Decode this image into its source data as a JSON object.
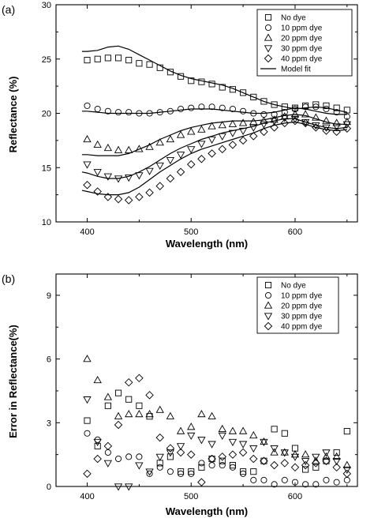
{
  "panels": [
    {
      "label": "(a)"
    },
    {
      "label": "(b)"
    }
  ],
  "chart_data": [
    {
      "type": "scatter",
      "xlabel": "Wavelength (nm)",
      "ylabel": "Reflectance (%)",
      "xlim": [
        370,
        660
      ],
      "ylim": [
        10,
        30
      ],
      "xticks": [
        400,
        500,
        600
      ],
      "yticks": [
        10,
        15,
        20,
        25,
        30
      ],
      "legend_position": "top-right",
      "series": [
        {
          "name": "No dye",
          "marker": "square",
          "x": [
            400,
            410,
            420,
            430,
            440,
            450,
            460,
            470,
            480,
            490,
            500,
            510,
            520,
            530,
            540,
            550,
            560,
            570,
            580,
            590,
            600,
            610,
            620,
            630,
            640,
            650
          ],
          "y": [
            24.9,
            25.0,
            25.1,
            25.1,
            24.9,
            24.6,
            24.5,
            24.2,
            23.8,
            23.4,
            23.0,
            22.9,
            22.7,
            22.4,
            22.2,
            21.9,
            21.5,
            21.1,
            20.8,
            20.6,
            20.5,
            20.7,
            20.8,
            20.7,
            20.5,
            20.3
          ]
        },
        {
          "name": "10 ppm dye",
          "marker": "circle",
          "x": [
            400,
            410,
            420,
            430,
            440,
            450,
            460,
            470,
            480,
            490,
            500,
            510,
            520,
            530,
            540,
            550,
            560,
            570,
            580,
            590,
            600,
            610,
            620,
            630,
            640,
            650
          ],
          "y": [
            20.7,
            20.4,
            20.2,
            20.1,
            20.1,
            20.0,
            20.0,
            20.1,
            20.2,
            20.4,
            20.5,
            20.6,
            20.6,
            20.5,
            20.4,
            20.2,
            20.0,
            19.9,
            19.9,
            20.1,
            20.4,
            20.6,
            20.6,
            20.4,
            20.1,
            19.7
          ]
        },
        {
          "name": "20 ppm dye",
          "marker": "triangle-up",
          "x": [
            400,
            410,
            420,
            430,
            440,
            450,
            460,
            470,
            480,
            490,
            500,
            510,
            520,
            530,
            540,
            550,
            560,
            570,
            580,
            590,
            600,
            610,
            620,
            630,
            640,
            650
          ],
          "y": [
            17.6,
            17.1,
            16.8,
            16.6,
            16.6,
            16.7,
            16.9,
            17.3,
            17.6,
            18.0,
            18.3,
            18.5,
            18.8,
            18.9,
            19.0,
            19.1,
            19.2,
            19.3,
            19.4,
            19.7,
            19.9,
            19.9,
            19.6,
            19.3,
            19.1,
            19.2
          ]
        },
        {
          "name": "30 ppm dye",
          "marker": "triangle-down",
          "x": [
            400,
            410,
            420,
            430,
            440,
            450,
            460,
            470,
            480,
            490,
            500,
            510,
            520,
            530,
            540,
            550,
            560,
            570,
            580,
            590,
            600,
            610,
            620,
            630,
            640,
            650
          ],
          "y": [
            15.3,
            14.6,
            14.2,
            14.0,
            14.1,
            14.3,
            14.7,
            15.2,
            15.7,
            16.2,
            16.7,
            17.2,
            17.6,
            17.9,
            18.2,
            18.4,
            18.7,
            19.0,
            19.3,
            19.6,
            19.5,
            19.2,
            18.9,
            18.7,
            18.8,
            19.0
          ]
        },
        {
          "name": "40 ppm dye",
          "marker": "diamond",
          "x": [
            400,
            410,
            420,
            430,
            440,
            450,
            460,
            470,
            480,
            490,
            500,
            510,
            520,
            530,
            540,
            550,
            560,
            570,
            580,
            590,
            600,
            610,
            620,
            630,
            640,
            650
          ],
          "y": [
            13.4,
            12.8,
            12.3,
            12.1,
            12.0,
            12.3,
            12.7,
            13.3,
            14.0,
            14.6,
            15.3,
            15.8,
            16.3,
            16.7,
            17.1,
            17.5,
            17.9,
            18.3,
            18.7,
            19.1,
            19.3,
            19.1,
            18.7,
            18.4,
            18.3,
            18.6
          ]
        }
      ],
      "model_fit": [
        {
          "name": "Model fit",
          "for": "No dye",
          "x": [
            395,
            400,
            410,
            420,
            430,
            440,
            450,
            460,
            470,
            480,
            490,
            500,
            510,
            520,
            530,
            540,
            550,
            560,
            570,
            580,
            590,
            600,
            610,
            620,
            630,
            640,
            650
          ],
          "y": [
            25.7,
            25.7,
            25.8,
            26.1,
            26.2,
            25.9,
            25.4,
            24.9,
            24.4,
            23.9,
            23.5,
            23.2,
            23.0,
            22.8,
            22.6,
            22.3,
            21.9,
            21.5,
            21.1,
            20.8,
            20.6,
            20.4,
            20.5,
            20.6,
            20.5,
            20.3,
            20.1
          ]
        },
        {
          "for": "10 ppm dye",
          "x": [
            395,
            400,
            410,
            420,
            430,
            440,
            450,
            460,
            470,
            480,
            490,
            500,
            510,
            520,
            530,
            540,
            550,
            560,
            570,
            580,
            590,
            600,
            610,
            620,
            630,
            640,
            650
          ],
          "y": [
            20.2,
            20.2,
            20.1,
            20.0,
            20.0,
            20.0,
            20.0,
            20.0,
            20.1,
            20.2,
            20.3,
            20.4,
            20.4,
            20.4,
            20.3,
            20.2,
            20.1,
            20.0,
            20.0,
            20.1,
            20.3,
            20.5,
            20.4,
            20.2,
            20.0,
            19.9,
            19.9
          ]
        },
        {
          "for": "20 ppm dye",
          "x": [
            395,
            400,
            410,
            420,
            430,
            440,
            450,
            460,
            470,
            480,
            490,
            500,
            510,
            520,
            530,
            540,
            550,
            560,
            570,
            580,
            590,
            600,
            610,
            620,
            630,
            640,
            650
          ],
          "y": [
            16.2,
            16.2,
            16.1,
            16.1,
            16.1,
            16.3,
            16.7,
            17.1,
            17.6,
            18.0,
            18.4,
            18.7,
            18.9,
            19.1,
            19.2,
            19.3,
            19.3,
            19.3,
            19.4,
            19.6,
            19.8,
            19.9,
            19.8,
            19.5,
            19.2,
            19.0,
            19.0
          ]
        },
        {
          "for": "30 ppm dye",
          "x": [
            395,
            400,
            410,
            420,
            430,
            440,
            450,
            460,
            470,
            480,
            490,
            500,
            510,
            520,
            530,
            540,
            550,
            560,
            570,
            580,
            590,
            600,
            610,
            620,
            630,
            640,
            650
          ],
          "y": [
            14.6,
            14.5,
            14.2,
            14.0,
            14.0,
            14.2,
            14.6,
            15.1,
            15.7,
            16.3,
            16.8,
            17.2,
            17.6,
            17.9,
            18.2,
            18.4,
            18.6,
            18.8,
            19.1,
            19.3,
            19.5,
            19.5,
            19.2,
            18.9,
            18.7,
            18.6,
            18.7
          ]
        },
        {
          "for": "40 ppm dye",
          "x": [
            395,
            400,
            410,
            420,
            430,
            440,
            450,
            460,
            470,
            480,
            490,
            500,
            510,
            520,
            530,
            540,
            550,
            560,
            570,
            580,
            590,
            600,
            610,
            620,
            630,
            640,
            650
          ],
          "y": [
            12.9,
            12.8,
            12.6,
            12.5,
            12.5,
            12.7,
            13.2,
            13.9,
            14.6,
            15.2,
            15.8,
            16.3,
            16.7,
            17.0,
            17.3,
            17.6,
            17.9,
            18.2,
            18.6,
            18.9,
            19.1,
            19.2,
            19.0,
            18.7,
            18.5,
            18.4,
            18.5
          ]
        }
      ]
    },
    {
      "type": "scatter",
      "xlabel": "Wavelength (nm)",
      "ylabel": "Error in Reflectance(%)",
      "xlim": [
        370,
        660
      ],
      "ylim": [
        0,
        10
      ],
      "xticks": [
        400,
        500,
        600
      ],
      "yticks": [
        0,
        3,
        6,
        9
      ],
      "legend_position": "top-right",
      "series": [
        {
          "name": "No dye",
          "marker": "square",
          "x": [
            400,
            410,
            420,
            430,
            440,
            450,
            460,
            470,
            480,
            490,
            500,
            510,
            520,
            530,
            540,
            550,
            560,
            570,
            580,
            590,
            600,
            610,
            620,
            630,
            640,
            650
          ],
          "y": [
            3.1,
            1.9,
            3.8,
            4.4,
            4.1,
            3.8,
            3.3,
            1.1,
            1.4,
            0.7,
            0.7,
            0.9,
            1.3,
            1.2,
            1.0,
            0.7,
            0.7,
            1.2,
            2.7,
            2.5,
            1.8,
            0.8,
            0.9,
            1.2,
            1.6,
            2.6
          ]
        },
        {
          "name": "10 ppm dye",
          "marker": "circle",
          "x": [
            400,
            410,
            420,
            430,
            440,
            450,
            460,
            470,
            480,
            490,
            500,
            510,
            520,
            530,
            540,
            550,
            560,
            570,
            580,
            590,
            600,
            610,
            620,
            630,
            640,
            650
          ],
          "y": [
            2.5,
            2.2,
            1.6,
            1.3,
            1.4,
            1.4,
            0.6,
            0.9,
            0.7,
            0.6,
            0.6,
            1.1,
            1.0,
            1.0,
            0.9,
            0.6,
            0.3,
            0.3,
            0.1,
            0.3,
            0.2,
            0.1,
            0.1,
            0.3,
            0.2,
            0.3
          ]
        },
        {
          "name": "20 ppm dye",
          "marker": "triangle-up",
          "x": [
            400,
            410,
            420,
            430,
            440,
            450,
            460,
            470,
            480,
            490,
            500,
            510,
            520,
            530,
            540,
            550,
            560,
            570,
            580,
            590,
            600,
            610,
            620,
            630,
            640,
            650
          ],
          "y": [
            6.0,
            5.0,
            4.2,
            3.3,
            3.4,
            3.4,
            3.4,
            3.6,
            3.3,
            2.6,
            2.8,
            3.4,
            3.3,
            2.7,
            2.6,
            2.6,
            2.4,
            2.1,
            1.6,
            1.6,
            1.5,
            1.5,
            1.2,
            1.4,
            1.4,
            1.0
          ]
        },
        {
          "name": "30 ppm dye",
          "marker": "triangle-down",
          "x": [
            400,
            410,
            420,
            430,
            440,
            450,
            460,
            470,
            480,
            490,
            500,
            510,
            520,
            530,
            540,
            550,
            560,
            570,
            580,
            590,
            600,
            610,
            620,
            630,
            640,
            650
          ],
          "y": [
            4.1,
            2.1,
            1.1,
            0.0,
            0.0,
            1.0,
            0.7,
            1.4,
            1.6,
            1.9,
            2.4,
            2.2,
            2.0,
            2.4,
            2.1,
            2.0,
            1.8,
            2.1,
            1.8,
            1.6,
            1.4,
            1.2,
            1.4,
            1.6,
            1.2,
            0.8
          ]
        },
        {
          "name": "40 ppm dye",
          "marker": "diamond",
          "x": [
            400,
            410,
            420,
            430,
            440,
            450,
            460,
            470,
            480,
            490,
            500,
            510,
            520,
            530,
            540,
            550,
            560,
            570,
            580,
            590,
            600,
            610,
            620,
            630,
            640,
            650
          ],
          "y": [
            0.6,
            1.3,
            1.9,
            2.9,
            4.9,
            5.1,
            4.3,
            2.3,
            1.8,
            1.6,
            1.5,
            0.2,
            1.3,
            1.4,
            1.5,
            1.6,
            1.3,
            1.2,
            1.0,
            1.1,
            0.9,
            1.0,
            1.1,
            1.2,
            0.9,
            0.6
          ]
        }
      ]
    }
  ]
}
